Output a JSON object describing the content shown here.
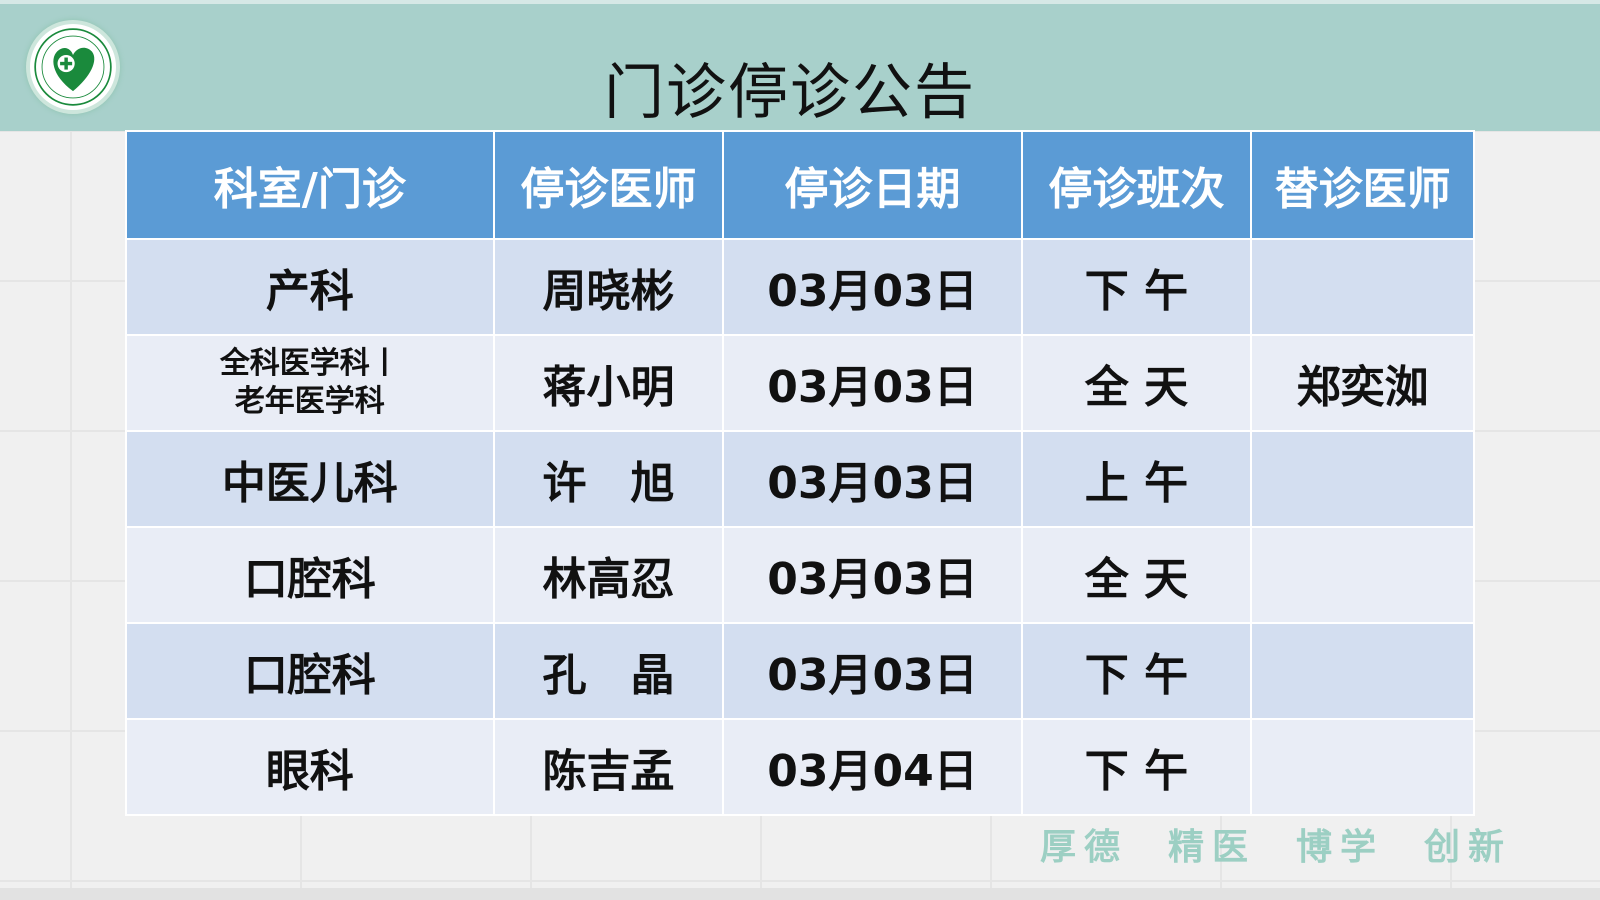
{
  "title": "门诊停诊公告",
  "logo": {
    "icon": "hospital-logo-icon",
    "color": "#1a8a3c"
  },
  "colors": {
    "header_band": "#a8d0cb",
    "table_header": "#5b9bd5",
    "row_odd": "#d3def0",
    "row_even": "#e9edf6",
    "motto": "#9ccfc3"
  },
  "table": {
    "headers": [
      "科室/门诊",
      "停诊医师",
      "停诊日期",
      "停诊班次",
      "替诊医师"
    ],
    "rows": [
      {
        "dept": "产科",
        "doctor": "周晓彬",
        "date": "03月03日",
        "shift": "下 午",
        "substitute": ""
      },
      {
        "dept": "全科医学科丨",
        "dept2": "老年医学科",
        "doctor": "蒋小明",
        "date": "03月03日",
        "shift": "全 天",
        "substitute": "郑奕洳"
      },
      {
        "dept": "中医儿科",
        "doctor": "许　旭",
        "date": "03月03日",
        "shift": "上 午",
        "substitute": ""
      },
      {
        "dept": "口腔科",
        "doctor": "林高忍",
        "date": "03月03日",
        "shift": "全 天",
        "substitute": ""
      },
      {
        "dept": "口腔科",
        "doctor": "孔　晶",
        "date": "03月03日",
        "shift": "下 午",
        "substitute": ""
      },
      {
        "dept": "眼科",
        "doctor": "陈吉孟",
        "date": "03月04日",
        "shift": "下 午",
        "substitute": ""
      }
    ]
  },
  "motto": [
    "厚德",
    "精医",
    "博学",
    "创新"
  ]
}
